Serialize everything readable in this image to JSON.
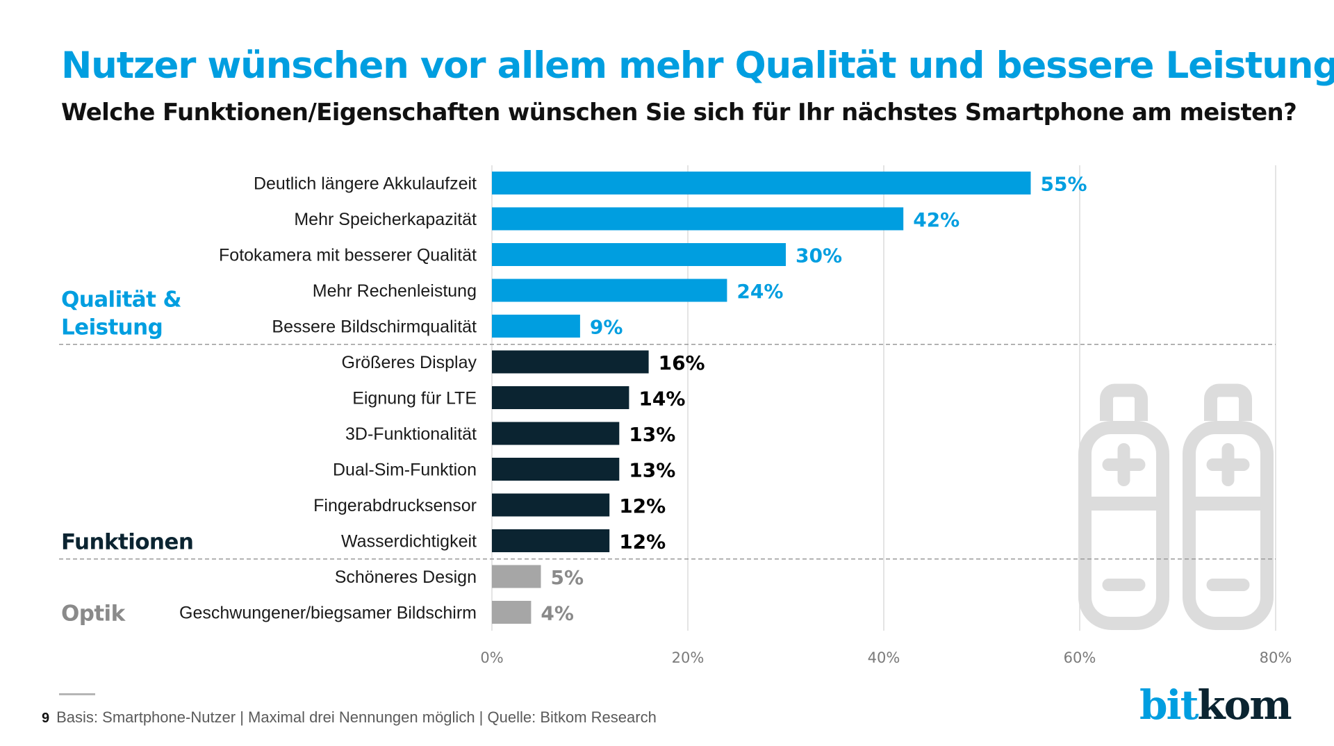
{
  "header": {
    "title": "Nutzer wünschen vor allem mehr Qualität und bessere Leistung",
    "subtitle": "Welche Funktionen/Eigenschaften wünschen Sie sich für Ihr nächstes Smartphone am meisten?"
  },
  "colors": {
    "accent_blue": "#009ee0",
    "dark_navy": "#0b2431",
    "gray_bar": "#a6a6a6",
    "gray_text": "#8a8a8a",
    "gridline": "#dcdcdc",
    "separator": "#9a9a9a",
    "battery_icon": "#dcdcdc"
  },
  "chart_data": {
    "type": "bar",
    "orientation": "horizontal",
    "title": "Nutzer wünschen vor allem mehr Qualität und bessere Leistung",
    "subtitle": "Welche Funktionen/Eigenschaften wünschen Sie sich für Ihr nächstes Smartphone am meisten?",
    "xlabel": "",
    "ylabel": "",
    "xlim": [
      0,
      80
    ],
    "x_ticks": [
      0,
      20,
      40,
      60,
      80
    ],
    "x_tick_labels": [
      "0%",
      "20%",
      "40%",
      "60%",
      "80%"
    ],
    "grid": true,
    "unit": "%",
    "categories": [
      "Deutlich längere Akkulaufzeit",
      "Mehr Speicherkapazität",
      "Fotokamera mit besserer Qualität",
      "Mehr Rechenleistung",
      "Bessere Bildschirmqualität",
      "Größeres Display",
      "Eignung für LTE",
      "3D-Funktionalität",
      "Dual-Sim-Funktion",
      "Fingerabdrucksensor",
      "Wasserdichtigkeit",
      "Schöneres Design",
      "Geschwungener/biegsamer Bildschirm"
    ],
    "values": [
      55,
      42,
      30,
      24,
      9,
      16,
      14,
      13,
      13,
      12,
      12,
      5,
      4
    ],
    "value_labels": [
      "55%",
      "42%",
      "30%",
      "24%",
      "9%",
      "16%",
      "14%",
      "13%",
      "13%",
      "12%",
      "12%",
      "5%",
      "4%"
    ],
    "groups": [
      {
        "name": "Qualität & Leistung",
        "lines": [
          "Qualität &",
          "Leistung"
        ],
        "start": 0,
        "end": 4,
        "color": "#009ee0",
        "label_color": "#009ee0",
        "value_color": "#009ee0"
      },
      {
        "name": "Funktionen",
        "lines": [
          "Funktionen"
        ],
        "start": 5,
        "end": 10,
        "color": "#0b2431",
        "label_color": "#0b2431",
        "value_color": "#000000"
      },
      {
        "name": "Optik",
        "lines": [
          "Optik"
        ],
        "start": 11,
        "end": 12,
        "color": "#a6a6a6",
        "label_color": "#8a8a8a",
        "value_color": "#8a8a8a"
      }
    ],
    "legend": "none"
  },
  "decoration": {
    "icon": "battery-icon",
    "count": 2
  },
  "footer": {
    "page_number": "9",
    "source": "Basis: Smartphone-Nutzer | Maximal drei Nennungen möglich | Quelle: Bitkom Research"
  },
  "logo": {
    "part1": "bit",
    "part2": "kom"
  }
}
